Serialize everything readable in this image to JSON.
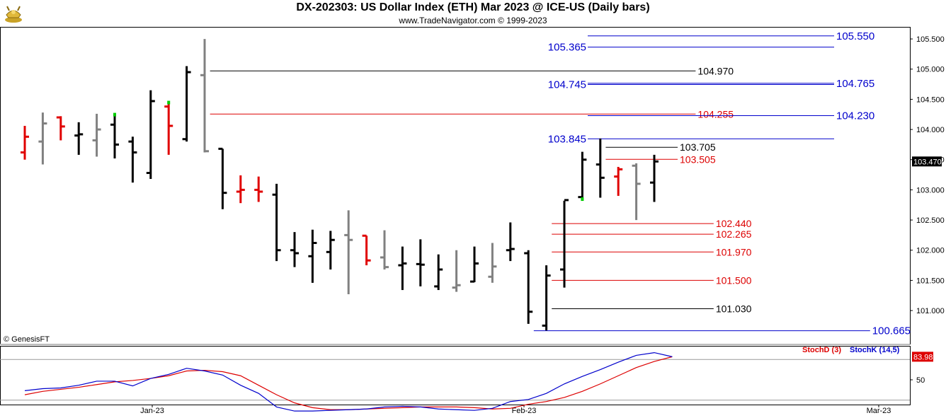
{
  "header": {
    "title": "DX-202303:  US Dollar Index (ETH) Mar 2023 @ ICE-US  (Daily bars)",
    "subtitle": "www.TradeNavigator.com © 1999-2023",
    "logo_icon": "gold-bull-logo-icon"
  },
  "footer": {
    "credit": "© GenesisFT"
  },
  "colors": {
    "up": "#000000",
    "down": "#e00000",
    "inside": "#808080",
    "blue": "#0000cc",
    "red": "#dd0000",
    "green": "#00cc00"
  },
  "chart_data": [
    {
      "type": "ohlc",
      "title": "DX-202303:  US Dollar Index (ETH) Mar 2023 @ ICE-US  (Daily bars)",
      "ylim": [
        100.45,
        105.7
      ],
      "y_ticks": [
        "105.500",
        "105.000",
        "104.500",
        "104.000",
        "103.500",
        "103.000",
        "102.500",
        "102.000",
        "101.500",
        "101.000"
      ],
      "x_ticks": [
        "Jan-23",
        "Feb-23",
        "Mar-23"
      ],
      "last_price": "103.470",
      "bars": [
        {
          "o": 103.62,
          "h": 104.06,
          "l": 103.5,
          "c": 103.88,
          "color": "down"
        },
        {
          "o": 103.8,
          "h": 104.28,
          "l": 103.42,
          "c": 104.1,
          "color": "inside"
        },
        {
          "o": 104.2,
          "h": 104.22,
          "l": 103.82,
          "c": 104.05,
          "color": "down"
        },
        {
          "o": 103.9,
          "h": 104.12,
          "l": 103.58,
          "c": 103.92,
          "color": "up"
        },
        {
          "o": 103.82,
          "h": 104.26,
          "l": 103.55,
          "c": 104.0,
          "color": "inside"
        },
        {
          "o": 104.08,
          "h": 104.22,
          "l": 103.52,
          "c": 103.75,
          "color": "up"
        },
        {
          "o": 103.8,
          "h": 103.88,
          "l": 103.12,
          "c": 103.62,
          "color": "up"
        },
        {
          "o": 103.28,
          "h": 104.65,
          "l": 103.18,
          "c": 104.47,
          "color": "up"
        },
        {
          "o": 104.38,
          "h": 104.46,
          "l": 103.58,
          "c": 104.06,
          "color": "down"
        },
        {
          "o": 103.84,
          "h": 105.05,
          "l": 103.8,
          "c": 104.95,
          "color": "up"
        },
        {
          "o": 104.9,
          "h": 105.5,
          "l": 103.62,
          "c": 103.64,
          "color": "inside"
        },
        {
          "o": 103.68,
          "h": 103.68,
          "l": 102.68,
          "c": 102.95,
          "color": "up"
        },
        {
          "o": 102.97,
          "h": 103.24,
          "l": 102.78,
          "c": 103.0,
          "color": "down"
        },
        {
          "o": 103.0,
          "h": 103.22,
          "l": 102.8,
          "c": 102.97,
          "color": "down"
        },
        {
          "o": 102.92,
          "h": 103.1,
          "l": 101.82,
          "c": 102.0,
          "color": "up"
        },
        {
          "o": 102.0,
          "h": 102.3,
          "l": 101.72,
          "c": 101.95,
          "color": "up"
        },
        {
          "o": 101.9,
          "h": 102.34,
          "l": 101.46,
          "c": 102.12,
          "color": "up"
        },
        {
          "o": 101.97,
          "h": 102.32,
          "l": 101.68,
          "c": 102.17,
          "color": "up"
        },
        {
          "o": 102.25,
          "h": 102.66,
          "l": 101.27,
          "c": 102.17,
          "color": "inside"
        },
        {
          "o": 102.24,
          "h": 102.24,
          "l": 101.75,
          "c": 101.83,
          "color": "down"
        },
        {
          "o": 101.88,
          "h": 102.33,
          "l": 101.68,
          "c": 101.72,
          "color": "inside"
        },
        {
          "o": 101.75,
          "h": 102.06,
          "l": 101.34,
          "c": 101.78,
          "color": "up"
        },
        {
          "o": 101.77,
          "h": 102.18,
          "l": 101.4,
          "c": 101.76,
          "color": "up"
        },
        {
          "o": 101.4,
          "h": 101.93,
          "l": 101.34,
          "c": 101.68,
          "color": "up"
        },
        {
          "o": 101.38,
          "h": 102.0,
          "l": 101.31,
          "c": 101.42,
          "color": "inside"
        },
        {
          "o": 101.48,
          "h": 102.06,
          "l": 101.47,
          "c": 101.78,
          "color": "up"
        },
        {
          "o": 101.56,
          "h": 102.12,
          "l": 101.46,
          "c": 101.73,
          "color": "inside"
        },
        {
          "o": 102.0,
          "h": 102.46,
          "l": 101.82,
          "c": 102.02,
          "color": "up"
        },
        {
          "o": 101.95,
          "h": 102.0,
          "l": 100.78,
          "c": 100.98,
          "color": "up"
        },
        {
          "o": 100.75,
          "h": 101.75,
          "l": 100.67,
          "c": 101.58,
          "color": "up"
        },
        {
          "o": 101.68,
          "h": 102.82,
          "l": 101.38,
          "c": 102.83,
          "color": "up"
        },
        {
          "o": 102.88,
          "h": 103.63,
          "l": 102.84,
          "c": 103.5,
          "color": "up"
        },
        {
          "o": 103.42,
          "h": 103.85,
          "l": 102.87,
          "c": 103.2,
          "color": "up"
        },
        {
          "o": 103.22,
          "h": 103.38,
          "l": 102.9,
          "c": 103.34,
          "color": "down"
        },
        {
          "o": 103.4,
          "h": 103.44,
          "l": 102.5,
          "c": 103.1,
          "color": "inside"
        },
        {
          "o": 103.12,
          "h": 103.58,
          "l": 102.8,
          "c": 103.47,
          "color": "up"
        }
      ],
      "green_markers": [
        {
          "bar": 5,
          "price": 104.24
        },
        {
          "bar": 8,
          "price": 104.44
        },
        {
          "bar": 31,
          "price": 102.84
        }
      ],
      "levels": [
        {
          "price": 105.55,
          "label": "105.550",
          "color": "blue",
          "start": 31.3,
          "end": 45.0,
          "label_side": "right"
        },
        {
          "price": 105.365,
          "label": "105.365",
          "color": "blue",
          "start": 31.3,
          "end": 45.0,
          "label_side": "left"
        },
        {
          "price": 104.97,
          "label": "104.970",
          "color": "black",
          "start": 10.3,
          "end": 37.3,
          "label_side": "right"
        },
        {
          "price": 104.765,
          "label": "104.765",
          "color": "blue",
          "start": 31.3,
          "end": 45.0,
          "label_side": "right"
        },
        {
          "price": 104.745,
          "label": "104.745",
          "color": "blue",
          "start": 31.3,
          "end": 45.0,
          "label_side": "left"
        },
        {
          "price": 104.255,
          "label": "104.255",
          "color": "red",
          "start": 10.3,
          "end": 37.3,
          "label_side": "right"
        },
        {
          "price": 104.23,
          "label": "104.230",
          "color": "blue",
          "start": 31.3,
          "end": 45.0,
          "label_side": "right"
        },
        {
          "price": 103.845,
          "label": "103.845",
          "color": "blue",
          "start": 31.3,
          "end": 45.0,
          "label_side": "left"
        },
        {
          "price": 103.705,
          "label": "103.705",
          "color": "black",
          "start": 32.3,
          "end": 36.3,
          "label_side": "right"
        },
        {
          "price": 103.505,
          "label": "103.505",
          "color": "red",
          "start": 32.3,
          "end": 36.3,
          "label_side": "right"
        },
        {
          "price": 102.44,
          "label": "102.440",
          "color": "red",
          "start": 29.3,
          "end": 38.3,
          "label_side": "right"
        },
        {
          "price": 102.265,
          "label": "102.265",
          "color": "red",
          "start": 29.3,
          "end": 38.3,
          "label_side": "right"
        },
        {
          "price": 101.97,
          "label": "101.970",
          "color": "red",
          "start": 29.3,
          "end": 38.3,
          "label_side": "right"
        },
        {
          "price": 101.5,
          "label": "101.500",
          "color": "red",
          "start": 29.3,
          "end": 38.3,
          "label_side": "right"
        },
        {
          "price": 101.03,
          "label": "101.030",
          "color": "black",
          "start": 29.3,
          "end": 38.3,
          "label_side": "right"
        },
        {
          "price": 100.665,
          "label": "100.665",
          "color": "blue",
          "start": 28.3,
          "end": 47.0,
          "label_side": "right"
        }
      ]
    },
    {
      "type": "line",
      "ylim": [
        0,
        100
      ],
      "y_ticks": [
        "50"
      ],
      "reference_lines": [
        80,
        20
      ],
      "last_value": "83.98",
      "series": [
        {
          "name": "StochD (3)",
          "color": "red",
          "values": [
            28,
            33,
            36,
            39,
            43,
            47,
            49,
            52,
            56,
            63,
            64,
            62,
            56,
            42,
            28,
            16,
            9,
            6,
            6,
            7,
            8,
            9,
            10,
            10,
            10,
            9,
            7,
            8,
            14,
            18,
            24,
            33,
            44,
            56,
            68,
            77,
            84
          ]
        },
        {
          "name": "StochK (14,5)",
          "color": "blue",
          "values": [
            34,
            37,
            38,
            42,
            48,
            48,
            41,
            52,
            58,
            67,
            63,
            57,
            42,
            30,
            10,
            4,
            4,
            5,
            6,
            7,
            10,
            11,
            10,
            7,
            6,
            5,
            8,
            18,
            21,
            30,
            44,
            55,
            65,
            76,
            86,
            90,
            84
          ]
        }
      ]
    }
  ]
}
